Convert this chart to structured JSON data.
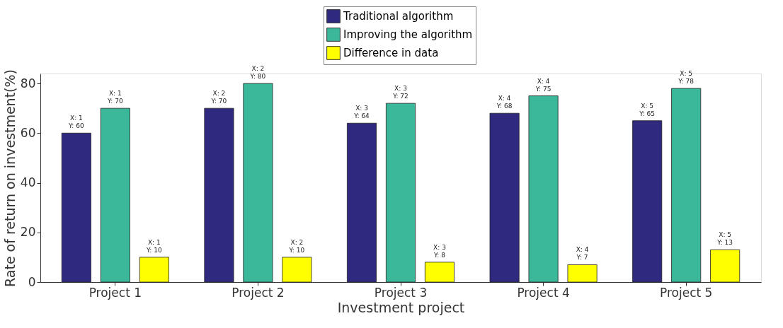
{
  "chart_data": {
    "type": "bar",
    "xlabel": "Investment project",
    "ylabel": "Rate of return on investment(%)",
    "categories": [
      "Project 1",
      "Project 2",
      "Project 3",
      "Project 4",
      "Project 5"
    ],
    "series": [
      {
        "name": "Traditional algorithm",
        "color": "#2f2a80",
        "values": [
          60,
          70,
          64,
          68,
          65
        ],
        "value_labels": [
          "X: 1\nY: 60",
          "X: 2\nY: 70",
          "X: 3\nY: 64",
          "X: 4\nY: 68",
          "X: 5\nY: 65"
        ]
      },
      {
        "name": "Improving the algorithm",
        "color": "#3bb89a",
        "values": [
          70,
          80,
          72,
          75,
          78
        ],
        "value_labels": [
          "X: 1\nY: 70",
          "X: 2\nY: 80",
          "X: 3\nY: 72",
          "X: 4\nY: 75",
          "X: 5\nY: 78"
        ]
      },
      {
        "name": "Difference in data",
        "color": "#ffff00",
        "values": [
          10,
          10,
          8,
          7,
          13
        ],
        "value_labels": [
          "X: 1\nY: 10",
          "X: 2\nY: 10",
          "X: 3\nY: 8",
          "X: 4\nY: 7",
          "X: 5\nY: 13"
        ]
      }
    ],
    "ylim": [
      0,
      84
    ],
    "yticks": [
      0,
      20,
      40,
      60,
      80
    ],
    "grid": false,
    "legend": "top"
  }
}
